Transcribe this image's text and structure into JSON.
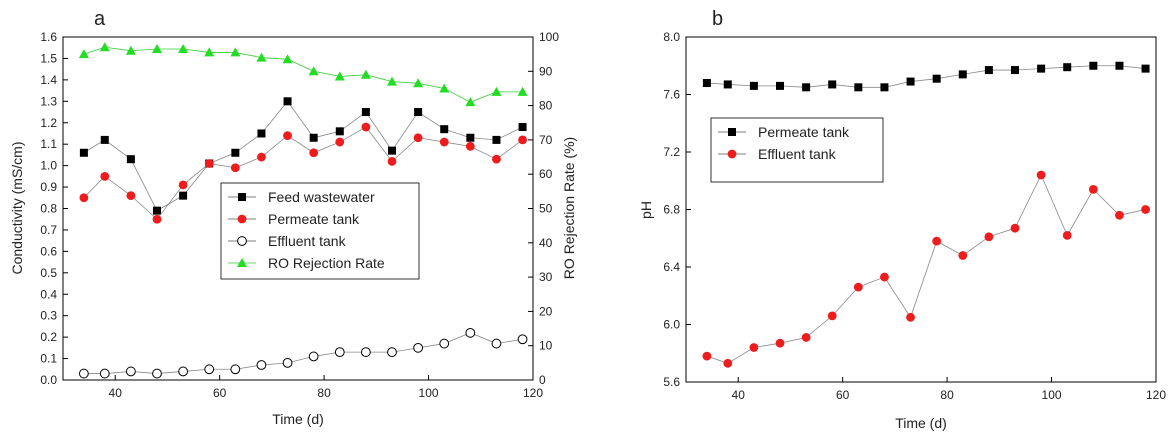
{
  "chart_data": [
    {
      "panel_label": "a",
      "type": "line",
      "x": [
        34,
        38,
        43,
        48,
        53,
        58,
        63,
        68,
        73,
        78,
        83,
        88,
        93,
        98,
        103,
        108,
        113,
        118
      ],
      "xlabel": "Time (d)",
      "ylabel": "Conductivity (mS/cm)",
      "y2label": "RO Rejection Rate (%)",
      "xlim": [
        30,
        120
      ],
      "ylim": [
        0,
        1.6
      ],
      "y2lim": [
        0,
        100
      ],
      "xticks": [
        "40",
        "60",
        "80",
        "100",
        "120"
      ],
      "yticks": [
        "0.0",
        "0.1",
        "0.2",
        "0.3",
        "0.4",
        "0.5",
        "0.6",
        "0.7",
        "0.8",
        "0.9",
        "1.0",
        "1.1",
        "1.2",
        "1.3",
        "1.4",
        "1.5",
        "1.6"
      ],
      "y2ticks": [
        "0",
        "10",
        "20",
        "30",
        "40",
        "50",
        "60",
        "70",
        "80",
        "90",
        "100"
      ],
      "legend_position": "center-right",
      "series": [
        {
          "name": "Feed wastewater",
          "axis": "left",
          "marker": "square",
          "color": "#000000",
          "values": [
            1.06,
            1.12,
            1.03,
            0.79,
            0.86,
            1.01,
            1.06,
            1.15,
            1.3,
            1.13,
            1.16,
            1.25,
            1.07,
            1.25,
            1.17,
            1.13,
            1.12,
            1.18
          ]
        },
        {
          "name": "Permeate tank",
          "axis": "left",
          "marker": "circle",
          "color": "#ee1c1c",
          "values": [
            0.85,
            0.95,
            0.86,
            0.75,
            0.91,
            1.01,
            0.99,
            1.04,
            1.14,
            1.06,
            1.11,
            1.18,
            1.02,
            1.13,
            1.11,
            1.09,
            1.03,
            1.12
          ]
        },
        {
          "name": "Effluent tank",
          "axis": "left",
          "marker": "open-circle",
          "color": "#000000",
          "values": [
            0.03,
            0.03,
            0.04,
            0.03,
            0.04,
            0.05,
            0.05,
            0.07,
            0.08,
            0.11,
            0.13,
            0.13,
            0.13,
            0.15,
            0.17,
            0.22,
            0.17,
            0.19
          ]
        },
        {
          "name": "RO Rejection Rate",
          "axis": "right",
          "marker": "triangle",
          "color": "#22dd22",
          "values": [
            95,
            97,
            96,
            96.5,
            96.5,
            95.5,
            95.5,
            94,
            93.5,
            90,
            88.5,
            89,
            87,
            86.5,
            85,
            81,
            84,
            84
          ]
        }
      ]
    },
    {
      "panel_label": "b",
      "type": "line",
      "x": [
        34,
        38,
        43,
        48,
        53,
        58,
        63,
        68,
        73,
        78,
        83,
        88,
        93,
        98,
        103,
        108,
        113,
        118
      ],
      "xlabel": "Time (d)",
      "ylabel": "pH",
      "xlim": [
        30,
        120
      ],
      "ylim": [
        5.6,
        8.0
      ],
      "xticks": [
        "40",
        "60",
        "80",
        "100",
        "120"
      ],
      "yticks": [
        "5.6",
        "6.0",
        "6.4",
        "6.8",
        "7.2",
        "7.6",
        "8.0"
      ],
      "legend_position": "upper-left",
      "series": [
        {
          "name": "Permeate tank",
          "marker": "square",
          "color": "#000000",
          "values": [
            7.68,
            7.67,
            7.66,
            7.66,
            7.65,
            7.67,
            7.65,
            7.65,
            7.69,
            7.71,
            7.74,
            7.77,
            7.77,
            7.78,
            7.79,
            7.8,
            7.8,
            7.78
          ]
        },
        {
          "name": "Effluent tank",
          "marker": "circle",
          "color": "#ee1c1c",
          "values": [
            5.78,
            5.73,
            5.84,
            5.87,
            5.91,
            6.06,
            6.26,
            6.33,
            6.05,
            6.58,
            6.48,
            6.61,
            6.67,
            7.04,
            6.62,
            6.94,
            6.76,
            6.8
          ]
        }
      ]
    }
  ]
}
